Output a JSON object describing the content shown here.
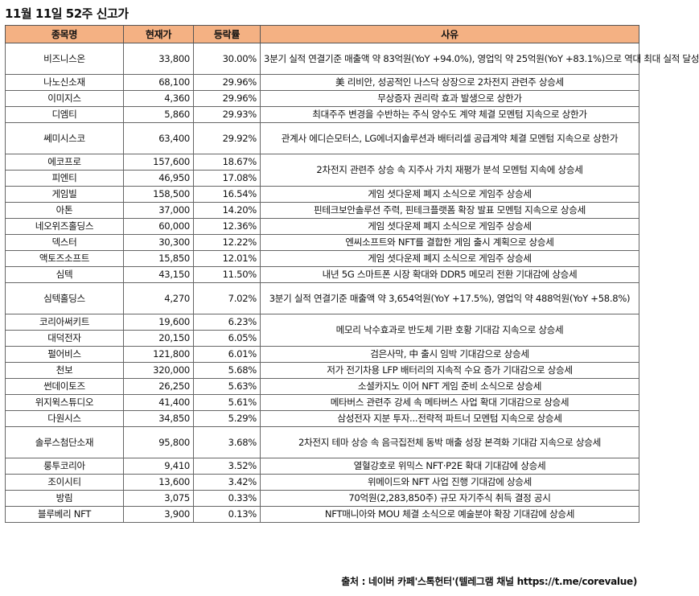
{
  "title": "11월 11일 52주 신고가",
  "headers": {
    "name": "종목명",
    "price": "현재가",
    "change": "등락률",
    "reason": "사유"
  },
  "reasons": [
    "3분기 실적 연결기준 매출액 약 83억원(YoY +94.0%), 영업익 약 25억원(YoY +83.1%)으로 역대 최대 실적 달성",
    "美 리비안, 성공적인 나스닥 상장으로 2차전지 관련주 상승세",
    "무상증자 권리락 효과 발생으로 상한가",
    "최대주주 변경을 수반하는 주식 양수도 계약 체결 모멘텀 지속으로 상한가",
    "관계사 에디슨모터스, LG에너지솔루션과 배터리셀 공급계약 체결 모멘텀 지속으로 상한가",
    "2차전지 관련주 상승 속 지주사 가치 재평가 분석 모멘텀 지속에 상승세",
    "게임 셧다운제 폐지 소식으로 게임주 상승세",
    "핀테크보안솔루션 주력, 핀테크플랫폼 확장 발표 모멘텀 지속으로 상승세",
    "게임 셧다운제 폐지 소식으로 게임주 상승세",
    "엔씨소프트와 NFT를 결합한 게임 출시 계획으로 상승세",
    "게임 셧다운제 폐지 소식으로 게임주 상승세",
    "내년 5G 스마트폰 시장 확대와 DDR5 메모리 전환 기대감에 상승세",
    "3분기 실적 연결기준 매출액 약 3,654억원(YoY +17.5%), 영업익 약 488억원(YoY +58.8%)",
    "메모리 낙수효과로 반도체 기판 호황 기대감 지속으로 상승세",
    "검은사막, 中 출시 임박 기대감으로 상승세",
    "저가 전기차용 LFP 배터리의 지속적 수요 증가 기대감으로 상승세",
    "소셜카지노 이어 NFT 게임 준비 소식으로 상승세",
    "메타버스 관련주 강세 속 메타버스 사업 확대 기대감으로 상승세",
    "삼성전자 지분 투자...전략적 파트너 모멘텀 지속으로 상승세",
    "2차전지 테마 상승 속 음극집전체 동박 매출 성장 본격화 기대감 지속으로 상승세",
    "열혈강호로 위믹스 NFT·P2E 확대 기대감에 상승세",
    "위메이드와 NFT 사업 진행 기대감에 상승세",
    "70억원(2,283,850주) 규모 자기주식 취득 결정 공시",
    "NFT매니아와 MOU 체결 소식으로 예술분야 확장 기대감에 상승세"
  ],
  "rows": [
    {
      "name": "비즈니스온",
      "price": "33,800",
      "change": "30.00%",
      "reason": 0,
      "span": 1,
      "tall": true
    },
    {
      "name": "나노신소재",
      "price": "68,100",
      "change": "29.96%",
      "reason": 1,
      "span": 1
    },
    {
      "name": "이미지스",
      "price": "4,360",
      "change": "29.96%",
      "reason": 2,
      "span": 1
    },
    {
      "name": "디엠티",
      "price": "5,860",
      "change": "29.93%",
      "reason": 3,
      "span": 1
    },
    {
      "name": "쎄미시스코",
      "price": "63,400",
      "change": "29.92%",
      "reason": 4,
      "span": 1,
      "tall": true
    },
    {
      "name": "에코프로",
      "price": "157,600",
      "change": "18.67%",
      "reason": 5,
      "span": 2
    },
    {
      "name": "피엔티",
      "price": "46,950",
      "change": "17.08%",
      "reason": null
    },
    {
      "name": "게임빌",
      "price": "158,500",
      "change": "16.54%",
      "reason": 6,
      "span": 1
    },
    {
      "name": "아톤",
      "price": "37,000",
      "change": "14.20%",
      "reason": 7,
      "span": 1
    },
    {
      "name": "네오위즈홀딩스",
      "price": "60,000",
      "change": "12.36%",
      "reason": 8,
      "span": 1
    },
    {
      "name": "덱스터",
      "price": "30,300",
      "change": "12.22%",
      "reason": 9,
      "span": 1
    },
    {
      "name": "액토즈소프트",
      "price": "15,850",
      "change": "12.01%",
      "reason": 10,
      "span": 1
    },
    {
      "name": "심텍",
      "price": "43,150",
      "change": "11.50%",
      "reason": 11,
      "span": 1
    },
    {
      "name": "심텍홀딩스",
      "price": "4,270",
      "change": "7.02%",
      "reason": 12,
      "span": 1,
      "tall": true
    },
    {
      "name": "코리아써키트",
      "price": "19,600",
      "change": "6.23%",
      "reason": 13,
      "span": 2
    },
    {
      "name": "대덕전자",
      "price": "20,150",
      "change": "6.05%",
      "reason": null
    },
    {
      "name": "펄어비스",
      "price": "121,800",
      "change": "6.01%",
      "reason": 14,
      "span": 1
    },
    {
      "name": "천보",
      "price": "320,000",
      "change": "5.68%",
      "reason": 15,
      "span": 1
    },
    {
      "name": "썬데이토즈",
      "price": "26,250",
      "change": "5.63%",
      "reason": 16,
      "span": 1
    },
    {
      "name": "위지윅스튜디오",
      "price": "41,400",
      "change": "5.61%",
      "reason": 17,
      "span": 1
    },
    {
      "name": "다원시스",
      "price": "34,850",
      "change": "5.29%",
      "reason": 18,
      "span": 1
    },
    {
      "name": "솔루스첨단소재",
      "price": "95,800",
      "change": "3.68%",
      "reason": 19,
      "span": 1,
      "tall": true
    },
    {
      "name": "룽투코리아",
      "price": "9,410",
      "change": "3.52%",
      "reason": 20,
      "span": 1
    },
    {
      "name": "조이시티",
      "price": "13,600",
      "change": "3.42%",
      "reason": 21,
      "span": 1
    },
    {
      "name": "방림",
      "price": "3,075",
      "change": "0.33%",
      "reason": 22,
      "span": 1
    },
    {
      "name": "블루베리 NFT",
      "price": "3,900",
      "change": "0.13%",
      "reason": 23,
      "span": 1
    }
  ],
  "source": "출처 : 네이버 카페'스톡헌터'(텔레그램 채널 https://t.me/corevalue)",
  "colors": {
    "header_bg": "#f4b183",
    "border": "#666666"
  }
}
